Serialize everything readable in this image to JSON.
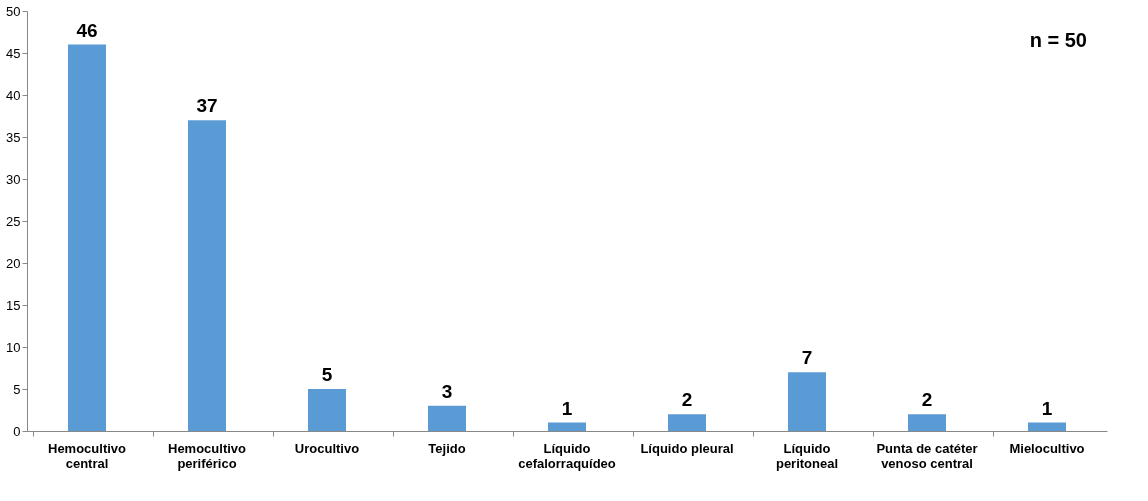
{
  "chart_data": {
    "type": "bar",
    "categories": [
      "Hemocultivo central",
      "Hemocultivo periférico",
      "Urocultivo",
      "Tejido",
      "Líquido cefalorraquídeo",
      "Líquido pleural",
      "Líquido peritoneal",
      "Punta de catéter venoso central",
      "Mielocultivo"
    ],
    "values": [
      46,
      37,
      5,
      3,
      1,
      2,
      7,
      2,
      1
    ],
    "color": "#5b9bd5",
    "ylim": [
      0,
      50
    ],
    "yticks": [
      0,
      5,
      10,
      15,
      20,
      25,
      30,
      35,
      40,
      45,
      50
    ],
    "grid": false,
    "data_labels": true,
    "annotations": [
      "n = 50"
    ]
  }
}
